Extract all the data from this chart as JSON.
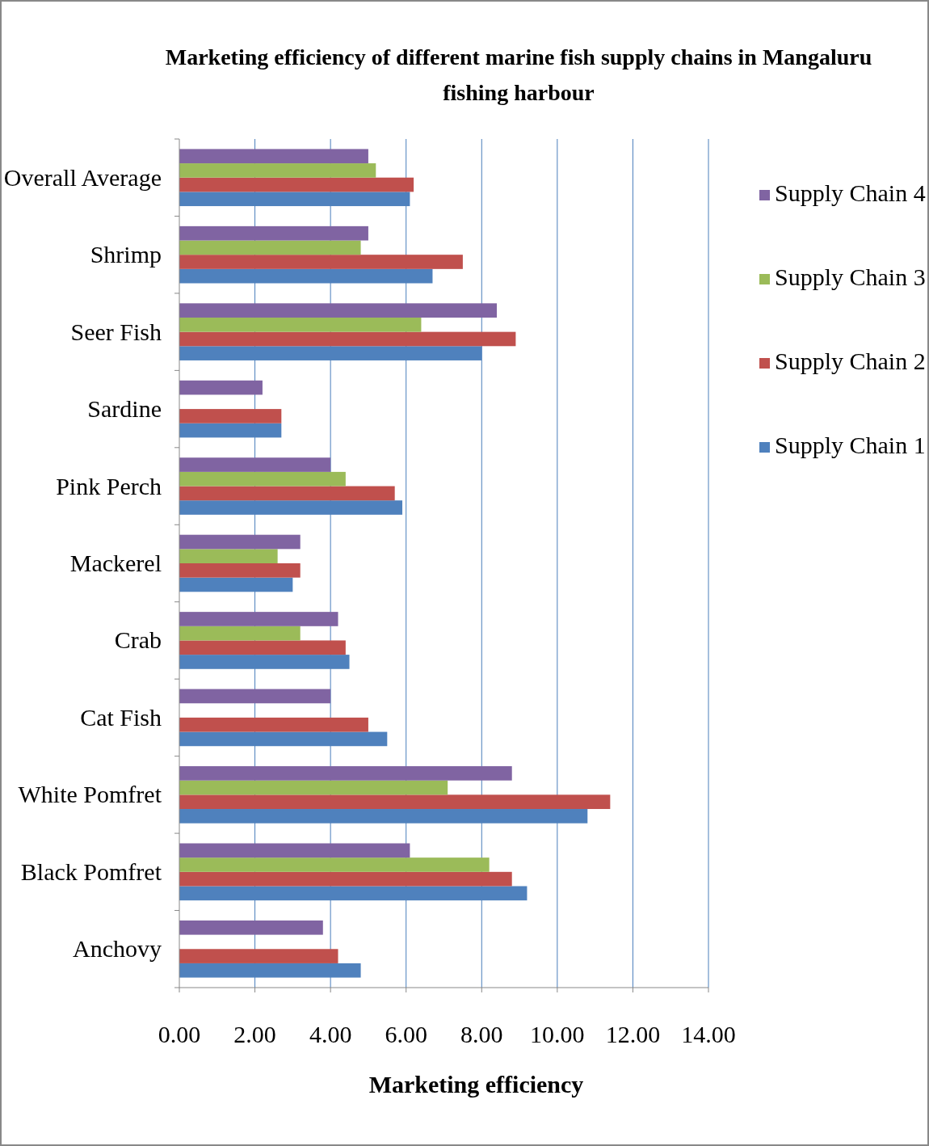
{
  "chart_data": {
    "type": "bar",
    "orientation": "horizontal",
    "title": "Marketing efficiency of different marine fish supply chains in Mangaluru fishing harbour",
    "xlabel": "Marketing efficiency",
    "categories": [
      "Overall Average",
      "Shrimp",
      "Seer Fish",
      "Sardine",
      "Pink Perch",
      "Mackerel",
      "Crab",
      "Cat Fish",
      "White Pomfret",
      "Black Pomfret",
      "Anchovy"
    ],
    "series": [
      {
        "name": "Supply Chain 1",
        "color": "#4f81bd",
        "values": [
          6.1,
          6.7,
          8.0,
          2.7,
          5.9,
          3.0,
          4.5,
          5.5,
          10.8,
          9.2,
          4.8
        ]
      },
      {
        "name": "Supply Chain 2",
        "color": "#c0504d",
        "values": [
          6.2,
          7.5,
          8.9,
          2.7,
          5.7,
          3.2,
          4.4,
          5.0,
          11.4,
          8.8,
          4.2
        ]
      },
      {
        "name": "Supply Chain 3",
        "color": "#9bbb59",
        "values": [
          5.2,
          4.8,
          6.4,
          null,
          4.4,
          2.6,
          3.2,
          null,
          7.1,
          8.2,
          null
        ]
      },
      {
        "name": "Supply Chain 4",
        "color": "#8064a2",
        "values": [
          5.0,
          5.0,
          8.4,
          2.2,
          4.0,
          3.2,
          4.2,
          4.0,
          8.8,
          6.1,
          3.8
        ]
      }
    ],
    "xlim": [
      0,
      14
    ],
    "xticks": [
      {
        "value": 0,
        "label": "0.00"
      },
      {
        "value": 2,
        "label": "2.00"
      },
      {
        "value": 4,
        "label": "4.00"
      },
      {
        "value": 6,
        "label": "6.00"
      },
      {
        "value": 8,
        "label": "8.00"
      },
      {
        "value": 10,
        "label": "10.00"
      },
      {
        "value": 12,
        "label": "12.00"
      },
      {
        "value": 14,
        "label": "14.00"
      }
    ],
    "grid": "x",
    "legend": "right"
  }
}
